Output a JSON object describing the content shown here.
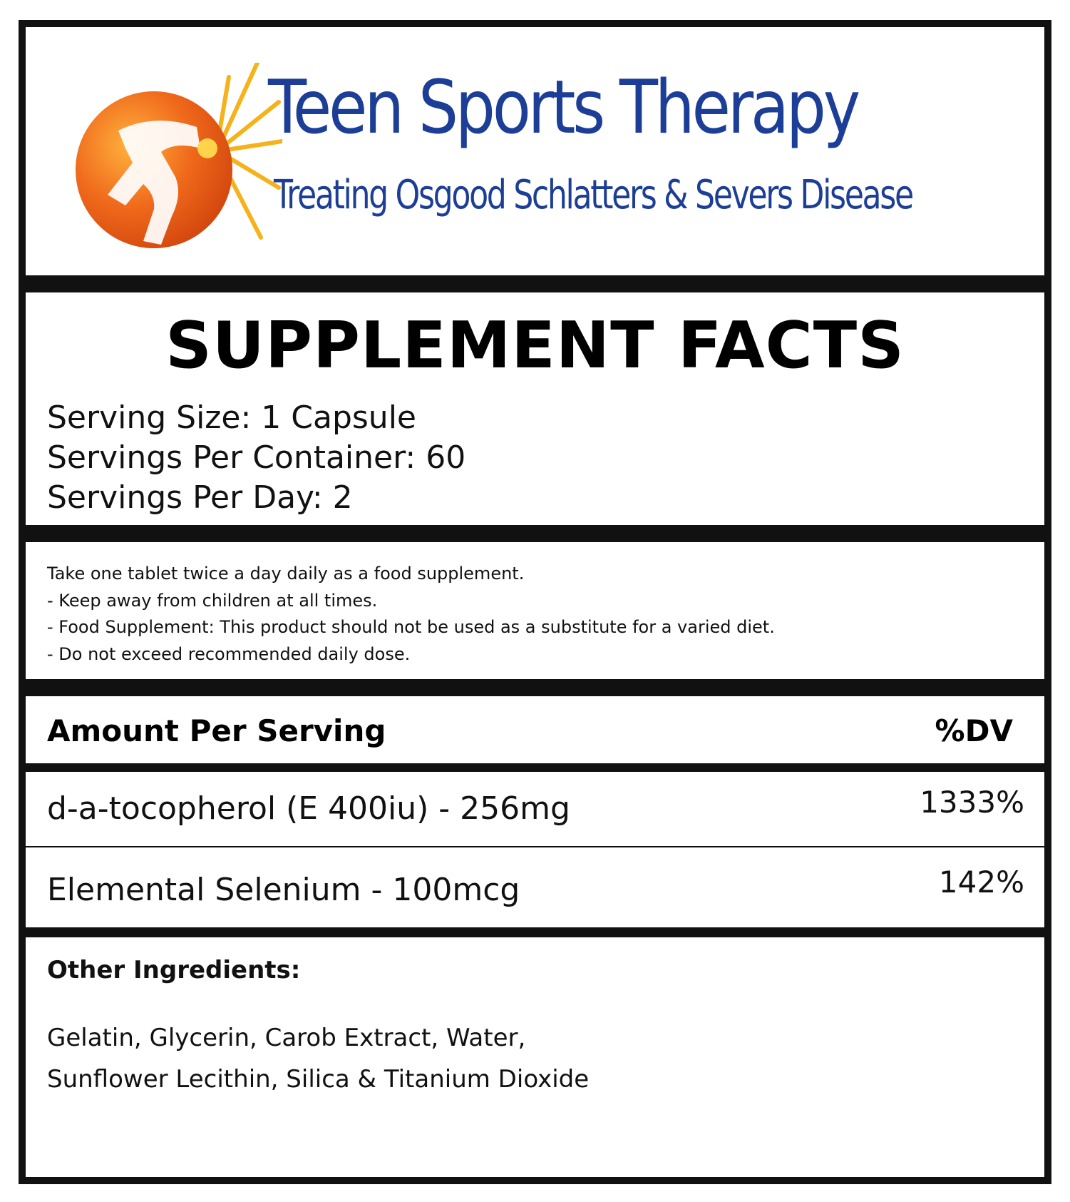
{
  "brand": {
    "name": "Teen Sports Therapy",
    "tagline": "Treating Osgood Schlatters & Severs Disease",
    "colors": {
      "orange": "#f06a1c",
      "blue": "#1d3e96",
      "burst": "#f6b21a"
    }
  },
  "facts": {
    "title": "SUPPLEMENT FACTS",
    "serving_size": "Serving Size: 1 Capsule",
    "servings_per_container": "Servings Per Container: 60",
    "servings_per_day": "Servings Per Day: 2"
  },
  "directions": [
    "Take one tablet twice a day daily as a food supplement.",
    "- Keep away from children at all times.",
    "- Food Supplement: This product should not be used as a substitute for a varied diet.",
    "- Do not exceed recommended daily dose."
  ],
  "table": {
    "header_amount": "Amount Per Serving",
    "header_dv": "%DV",
    "rows": [
      {
        "name": "d-a-tocopherol (E 400iu) - 256mg",
        "dv": "1333%"
      },
      {
        "name": "Elemental Selenium - 100mcg",
        "dv": "142%"
      }
    ]
  },
  "other": {
    "title": "Other Ingredients:",
    "line1": "Gelatin, Glycerin, Carob Extract, Water,",
    "line2": "Sunflower Lecithin, Silica & Titanium Dioxide"
  }
}
